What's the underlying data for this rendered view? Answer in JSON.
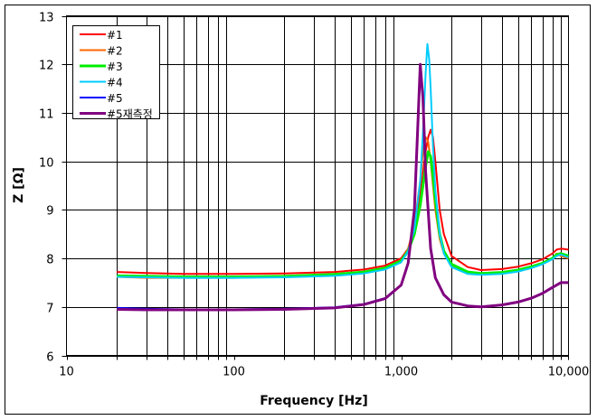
{
  "chart_data": {
    "type": "line",
    "title": "",
    "xlabel": "Frequency [Hz]",
    "ylabel": "Z [Ω]",
    "xscale": "log",
    "xlim": [
      10,
      10000
    ],
    "ylim": [
      6,
      13
    ],
    "xticks": [
      10,
      100,
      1000,
      10000
    ],
    "xtick_labels": [
      "10",
      "100",
      "1,000",
      "10,000"
    ],
    "yticks": [
      6,
      7,
      8,
      9,
      10,
      11,
      12,
      13
    ],
    "ytick_labels": [
      "6",
      "7",
      "8",
      "9",
      "10",
      "11",
      "12",
      "13"
    ],
    "grid": true,
    "legend_position": "upper-left",
    "series": [
      {
        "name": "#1",
        "color": "#ff0000",
        "width": 2,
        "x": [
          20,
          30,
          50,
          100,
          200,
          400,
          600,
          800,
          1000,
          1100,
          1200,
          1300,
          1400,
          1450,
          1500,
          1550,
          1600,
          1700,
          1800,
          2000,
          2500,
          3000,
          4000,
          5000,
          6000,
          7000,
          8000,
          8500,
          9000,
          10000
        ],
        "y": [
          7.72,
          7.7,
          7.68,
          7.68,
          7.69,
          7.72,
          7.77,
          7.85,
          8.0,
          8.2,
          8.6,
          9.3,
          10.2,
          10.5,
          10.65,
          10.5,
          10.0,
          9.0,
          8.5,
          8.05,
          7.82,
          7.76,
          7.78,
          7.83,
          7.9,
          7.98,
          8.1,
          8.18,
          8.2,
          8.18
        ]
      },
      {
        "name": "#2",
        "color": "#ff6600",
        "width": 2,
        "x": [
          20,
          30,
          50,
          100,
          200,
          400,
          600,
          800,
          1000,
          1100,
          1200,
          1300,
          1350,
          1400,
          1450,
          1500,
          1600,
          1700,
          1800,
          2000,
          2500,
          3000,
          4000,
          5000,
          6000,
          7000,
          8000,
          8500,
          9000,
          10000
        ],
        "y": [
          7.62,
          7.6,
          7.6,
          7.6,
          7.62,
          7.66,
          7.71,
          7.8,
          7.95,
          8.2,
          8.7,
          9.6,
          10.2,
          10.5,
          10.4,
          10.0,
          9.0,
          8.4,
          8.1,
          7.85,
          7.7,
          7.68,
          7.7,
          7.75,
          7.82,
          7.9,
          8.0,
          8.1,
          8.05,
          8.0
        ]
      },
      {
        "name": "#3",
        "color": "#00ee00",
        "width": 3,
        "x": [
          20,
          30,
          50,
          100,
          200,
          400,
          600,
          800,
          1000,
          1100,
          1200,
          1300,
          1400,
          1450,
          1500,
          1550,
          1600,
          1700,
          1800,
          2000,
          2500,
          3000,
          4000,
          5000,
          6000,
          7000,
          8000,
          8500,
          9000,
          10000
        ],
        "y": [
          7.64,
          7.63,
          7.62,
          7.62,
          7.63,
          7.67,
          7.72,
          7.8,
          7.95,
          8.15,
          8.5,
          9.1,
          9.9,
          10.2,
          10.1,
          9.7,
          9.2,
          8.5,
          8.15,
          7.88,
          7.72,
          7.69,
          7.71,
          7.76,
          7.83,
          7.9,
          8.0,
          8.08,
          8.1,
          8.05
        ]
      },
      {
        "name": "#4",
        "color": "#00ccff",
        "width": 2,
        "x": [
          20,
          30,
          50,
          100,
          200,
          400,
          600,
          800,
          1000,
          1100,
          1200,
          1300,
          1350,
          1400,
          1435,
          1470,
          1500,
          1550,
          1600,
          1700,
          1800,
          2000,
          2500,
          3000,
          4000,
          5000,
          6000,
          7000,
          8000,
          8500,
          9000,
          10000
        ],
        "y": [
          7.62,
          7.61,
          7.6,
          7.6,
          7.61,
          7.64,
          7.69,
          7.77,
          7.92,
          8.15,
          8.6,
          9.6,
          10.6,
          11.8,
          12.42,
          12.1,
          11.5,
          10.3,
          9.4,
          8.5,
          8.1,
          7.82,
          7.68,
          7.66,
          7.68,
          7.73,
          7.8,
          7.88,
          7.98,
          8.05,
          8.08,
          8.02
        ]
      },
      {
        "name": "#5",
        "color": "#0000ff",
        "width": 2,
        "x": [
          20,
          30,
          50,
          100,
          200,
          400,
          600,
          800,
          1000,
          1100,
          1200,
          1250,
          1300,
          1350,
          1400,
          1500,
          1600,
          1800,
          2000,
          2500,
          3000,
          4000,
          5000,
          6000,
          7000,
          8000,
          9000,
          10000
        ],
        "y": [
          6.98,
          6.96,
          6.95,
          6.95,
          6.96,
          6.99,
          7.06,
          7.18,
          7.45,
          7.9,
          9.0,
          10.5,
          11.95,
          11.3,
          9.8,
          8.2,
          7.6,
          7.25,
          7.1,
          7.02,
          7.0,
          7.04,
          7.1,
          7.18,
          7.28,
          7.4,
          7.5,
          7.5
        ]
      },
      {
        "name": "#5재측정",
        "color": "#800080",
        "width": 3,
        "x": [
          20,
          30,
          50,
          100,
          200,
          400,
          600,
          800,
          1000,
          1100,
          1200,
          1250,
          1300,
          1350,
          1400,
          1500,
          1600,
          1800,
          2000,
          2500,
          3000,
          4000,
          5000,
          6000,
          7000,
          8000,
          9000,
          10000
        ],
        "y": [
          6.95,
          6.94,
          6.94,
          6.94,
          6.95,
          6.98,
          7.05,
          7.17,
          7.45,
          7.9,
          9.0,
          10.5,
          12.0,
          11.3,
          9.8,
          8.2,
          7.6,
          7.25,
          7.1,
          7.02,
          7.0,
          7.04,
          7.1,
          7.18,
          7.28,
          7.4,
          7.5,
          7.5
        ]
      }
    ]
  }
}
